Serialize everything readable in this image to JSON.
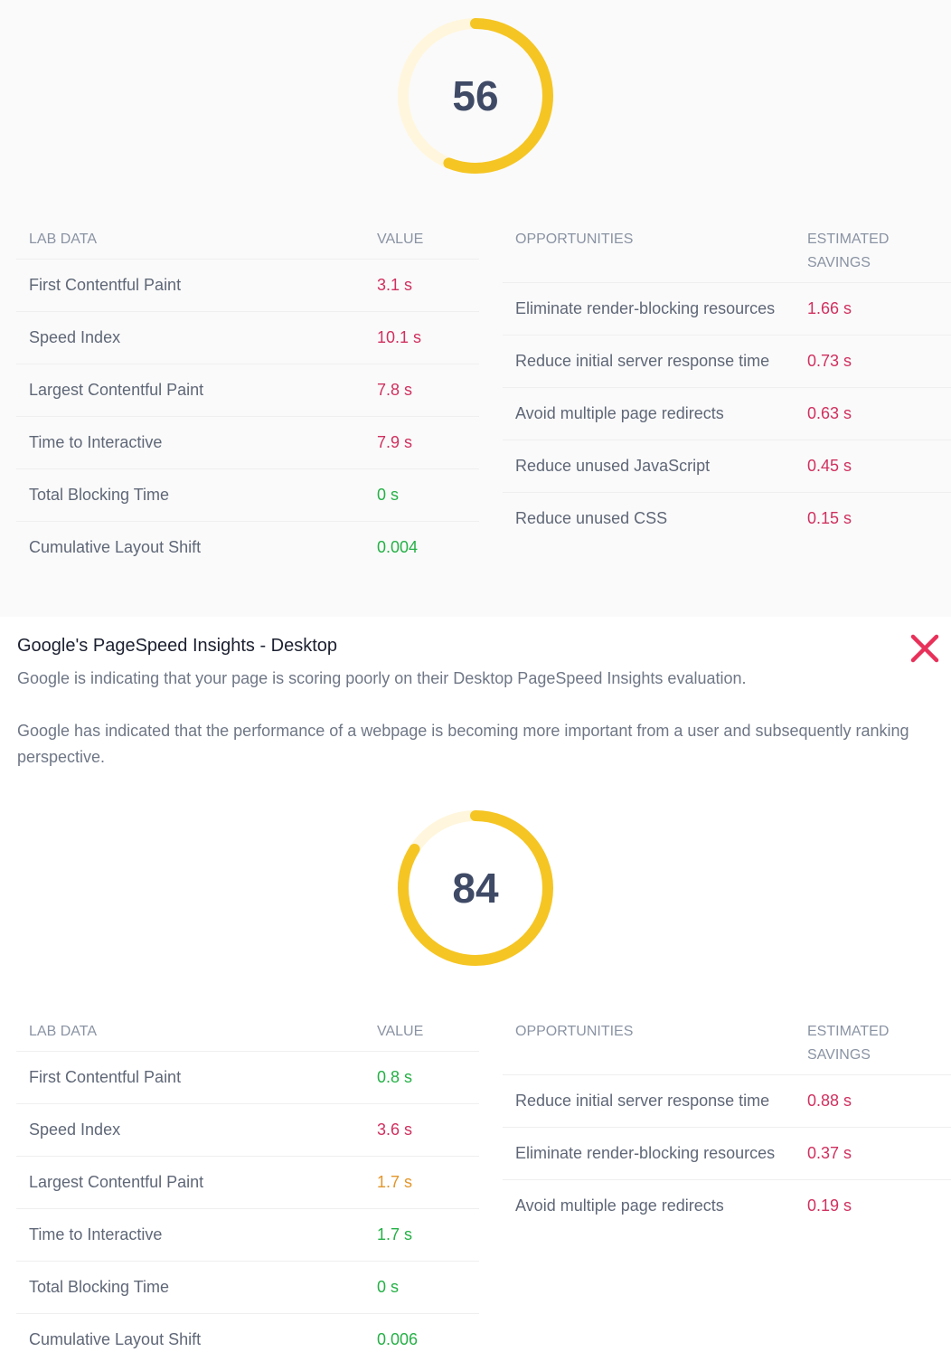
{
  "colors": {
    "poor": "#d0305f",
    "good": "#25b046",
    "average": "#e3962a",
    "gauge": "#f5c523",
    "gauge_track": "#fff6dd"
  },
  "mobile": {
    "score": 56,
    "lab_header": {
      "name": "LAB DATA",
      "value": "VALUE"
    },
    "lab": [
      {
        "name": "First Contentful Paint",
        "value": "3.1 s",
        "status": "red"
      },
      {
        "name": "Speed Index",
        "value": "10.1 s",
        "status": "red"
      },
      {
        "name": "Largest Contentful Paint",
        "value": "7.8 s",
        "status": "red"
      },
      {
        "name": "Time to Interactive",
        "value": "7.9 s",
        "status": "red"
      },
      {
        "name": "Total Blocking Time",
        "value": "0 s",
        "status": "green"
      },
      {
        "name": "Cumulative Layout Shift",
        "value": "0.004",
        "status": "green"
      }
    ],
    "opp_header": {
      "name": "OPPORTUNITIES",
      "value": "ESTIMATED SAVINGS"
    },
    "opps": [
      {
        "name": "Eliminate render-blocking resources",
        "value": "1.66 s"
      },
      {
        "name": "Reduce initial server response time",
        "value": "0.73 s"
      },
      {
        "name": "Avoid multiple page redirects",
        "value": "0.63 s"
      },
      {
        "name": "Reduce unused JavaScript",
        "value": "0.45 s"
      },
      {
        "name": "Reduce unused CSS",
        "value": "0.15 s"
      }
    ]
  },
  "desktop_info": {
    "title": "Google's PageSpeed Insights - Desktop",
    "text1": "Google is indicating that your page is scoring poorly on their Desktop PageSpeed Insights evaluation.",
    "text2": "Google has indicated that the performance of a webpage is becoming more important from a user and subsequently ranking perspective.",
    "status_icon": "x-fail-icon"
  },
  "desktop": {
    "score": 84,
    "lab_header": {
      "name": "LAB DATA",
      "value": "VALUE"
    },
    "lab": [
      {
        "name": "First Contentful Paint",
        "value": "0.8 s",
        "status": "green"
      },
      {
        "name": "Speed Index",
        "value": "3.6 s",
        "status": "red"
      },
      {
        "name": "Largest Contentful Paint",
        "value": "1.7 s",
        "status": "orange"
      },
      {
        "name": "Time to Interactive",
        "value": "1.7 s",
        "status": "green"
      },
      {
        "name": "Total Blocking Time",
        "value": "0 s",
        "status": "green"
      },
      {
        "name": "Cumulative Layout Shift",
        "value": "0.006",
        "status": "green"
      }
    ],
    "opp_header": {
      "name": "OPPORTUNITIES",
      "value": "ESTIMATED SAVINGS"
    },
    "opps": [
      {
        "name": "Reduce initial server response time",
        "value": "0.88 s"
      },
      {
        "name": "Eliminate render-blocking resources",
        "value": "0.37 s"
      },
      {
        "name": "Avoid multiple page redirects",
        "value": "0.19 s"
      }
    ]
  }
}
